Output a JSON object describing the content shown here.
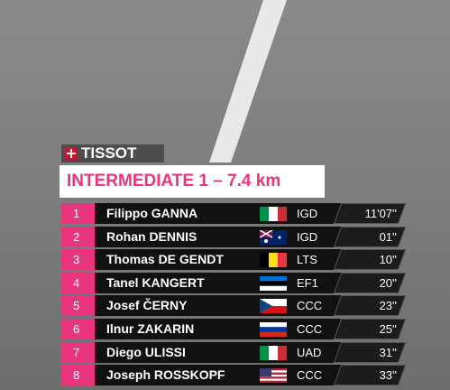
{
  "logo": "TISSOT",
  "title": "INTERMEDIATE 1 – 7.4 km",
  "table": {
    "rows": [
      {
        "rank": 1,
        "name": "Filippo GANNA",
        "team": "IGD",
        "time": "11'07''"
      },
      {
        "rank": 2,
        "name": "Rohan DENNIS",
        "team": "IGD",
        "time": "01''"
      },
      {
        "rank": 3,
        "name": "Thomas DE GENDT",
        "team": "LTS",
        "time": "10''"
      },
      {
        "rank": 4,
        "name": "Tanel KANGERT",
        "team": "EF1",
        "time": "20''"
      },
      {
        "rank": 5,
        "name": "Josef ČERNY",
        "team": "CCC",
        "time": "23''"
      },
      {
        "rank": 6,
        "name": "Ilnur ZAKARIN",
        "team": "CCC",
        "time": "25''"
      },
      {
        "rank": 7,
        "name": "Diego ULISSI",
        "team": "UAD",
        "time": "31''"
      },
      {
        "rank": 8,
        "name": "Joseph ROSSKOPF",
        "team": "CCC",
        "time": "33''"
      }
    ]
  }
}
